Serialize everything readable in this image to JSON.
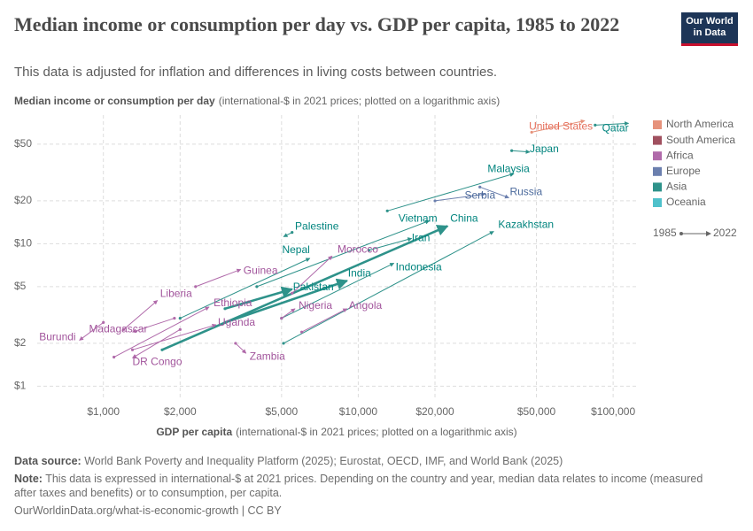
{
  "logo": "Our World in Data",
  "footer": {
    "source_label": "Data source:",
    "source": "World Bank Poverty and Inequality Platform (2025); Eurostat, OECD, IMF, and World Bank (2025)",
    "note_label": "Note:",
    "note": "This data is expressed in international-$ at 2021 prices. Depending on the country and year, median data relates to income (measured after taxes and benefits) or to consumption, per capita.",
    "url": "OurWorldinData.org/what-is-economic-growth | CC BY"
  },
  "chart_data": {
    "type": "scatter",
    "title": "Median income or consumption per day vs. GDP per capita, 1985 to 2022",
    "subtitle": "This data is adjusted for inflation and differences in living costs between countries.",
    "y_label": "Median income or consumption per day",
    "y_label_note": "(international-$ in 2021 prices; plotted on a logarithmic axis)",
    "x_label": "GDP per capita",
    "x_label_note": "(international-$ in 2021 prices; plotted on a logarithmic axis)",
    "log_x": true,
    "log_y": true,
    "grid": true,
    "xlim": [
      550,
      123000
    ],
    "ylim": [
      0.8,
      80
    ],
    "xticks": [
      {
        "value": 1000,
        "label": "$1,000"
      },
      {
        "value": 2000,
        "label": "$2,000"
      },
      {
        "value": 5000,
        "label": "$5,000"
      },
      {
        "value": 10000,
        "label": "$10,000"
      },
      {
        "value": 20000,
        "label": "$20,000"
      },
      {
        "value": 50000,
        "label": "$50,000"
      },
      {
        "value": 100000,
        "label": "$100,000"
      }
    ],
    "yticks": [
      {
        "value": 1,
        "label": "$1"
      },
      {
        "value": 2,
        "label": "$2"
      },
      {
        "value": 5,
        "label": "$5"
      },
      {
        "value": 10,
        "label": "$10"
      },
      {
        "value": 20,
        "label": "$20"
      },
      {
        "value": 50,
        "label": "$50"
      }
    ],
    "years": [
      1985,
      2022
    ],
    "regions": [
      {
        "name": "North America",
        "color": "#e6927b",
        "label_color": "#e56e5a"
      },
      {
        "name": "South America",
        "color": "#a0505f",
        "label_color": "#8c3a4b"
      },
      {
        "name": "Africa",
        "color": "#b06aaa",
        "label_color": "#a2559c"
      },
      {
        "name": "Europe",
        "color": "#6b7fae",
        "label_color": "#4c6a9c"
      },
      {
        "name": "Asia",
        "color": "#2e928a",
        "label_color": "#00847e"
      },
      {
        "name": "Oceania",
        "color": "#4fc1cb",
        "label_color": "#38aab4"
      }
    ],
    "countries": [
      {
        "name": "United States",
        "region": "North America",
        "x": [
          47900,
          77400
        ],
        "y": [
          60.6,
          73
        ]
      },
      {
        "name": "Qatar",
        "region": "Asia",
        "x": [
          85000,
          115000
        ],
        "y": [
          68,
          70
        ]
      },
      {
        "name": "Japan",
        "region": "Asia",
        "x": [
          40000,
          47100
        ],
        "y": [
          45,
          44
        ]
      },
      {
        "name": "Malaysia",
        "region": "Asia",
        "x": [
          13000,
          40800
        ],
        "y": [
          17,
          31
        ]
      },
      {
        "name": "Serbia",
        "region": "Europe",
        "x": [
          20000,
          31500
        ],
        "y": [
          20,
          22.3
        ]
      },
      {
        "name": "Russia",
        "region": "Europe",
        "x": [
          30000,
          39000
        ],
        "y": [
          25,
          21
        ]
      },
      {
        "name": "Vietnam",
        "region": "Asia",
        "x": [
          4000,
          19000
        ],
        "y": [
          5,
          14.5
        ]
      },
      {
        "name": "China",
        "region": "Asia",
        "x": [
          1700,
          22400
        ],
        "y": [
          1.8,
          13.3
        ]
      },
      {
        "name": "Kazakhstan",
        "region": "Asia",
        "x": [
          5090,
          34000
        ],
        "y": [
          2.0,
          12.2
        ]
      },
      {
        "name": "Iran",
        "region": "Asia",
        "x": [
          11000,
          16200
        ],
        "y": [
          9,
          10.9
        ]
      },
      {
        "name": "Palestine",
        "region": "Asia",
        "x": [
          5500,
          5090
        ],
        "y": [
          12,
          11.2
        ]
      },
      {
        "name": "Nepal",
        "region": "Asia",
        "x": [
          2000,
          6460
        ],
        "y": [
          3,
          7.9
        ]
      },
      {
        "name": "Morocco",
        "region": "Africa",
        "x": [
          5500,
          7900
        ],
        "y": [
          4.5,
          8.2
        ]
      },
      {
        "name": "Guinea",
        "region": "Africa",
        "x": [
          2300,
          3460
        ],
        "y": [
          5,
          6.6
        ]
      },
      {
        "name": "India",
        "region": "Asia",
        "x": [
          3000,
          9040
        ],
        "y": [
          2.8,
          5.5
        ]
      },
      {
        "name": "Indonesia",
        "region": "Asia",
        "x": [
          5000,
          13800
        ],
        "y": [
          3,
          7.3
        ]
      },
      {
        "name": "Pakistan",
        "region": "Asia",
        "x": [
          3000,
          5500
        ],
        "y": [
          3.5,
          4.8
        ]
      },
      {
        "name": "Liberia",
        "region": "Africa",
        "x": [
          1200,
          1630
        ],
        "y": [
          2.5,
          4.0
        ]
      },
      {
        "name": "Ethiopia",
        "region": "Africa",
        "x": [
          1100,
          2600
        ],
        "y": [
          1.6,
          3.6
        ]
      },
      {
        "name": "Nigeria",
        "region": "Africa",
        "x": [
          5000,
          5650
        ],
        "y": [
          3,
          3.5
        ]
      },
      {
        "name": "Angola",
        "region": "Africa",
        "x": [
          6000,
          9040
        ],
        "y": [
          2.4,
          3.5
        ]
      },
      {
        "name": "Uganda",
        "region": "Africa",
        "x": [
          1300,
          2770
        ],
        "y": [
          1.8,
          2.7
        ]
      },
      {
        "name": "Madagascar",
        "region": "Africa",
        "x": [
          1900,
          1300
        ],
        "y": [
          3.0,
          2.4
        ]
      },
      {
        "name": "Burundi",
        "region": "Africa",
        "x": [
          1000,
          805
        ],
        "y": [
          2.8,
          2.1
        ]
      },
      {
        "name": "DR Congo",
        "region": "Africa",
        "x": [
          2000,
          1300
        ],
        "y": [
          2.5,
          1.58
        ]
      },
      {
        "name": "Zambia",
        "region": "Africa",
        "x": [
          3300,
          3630
        ],
        "y": [
          2.0,
          1.7
        ]
      }
    ]
  }
}
